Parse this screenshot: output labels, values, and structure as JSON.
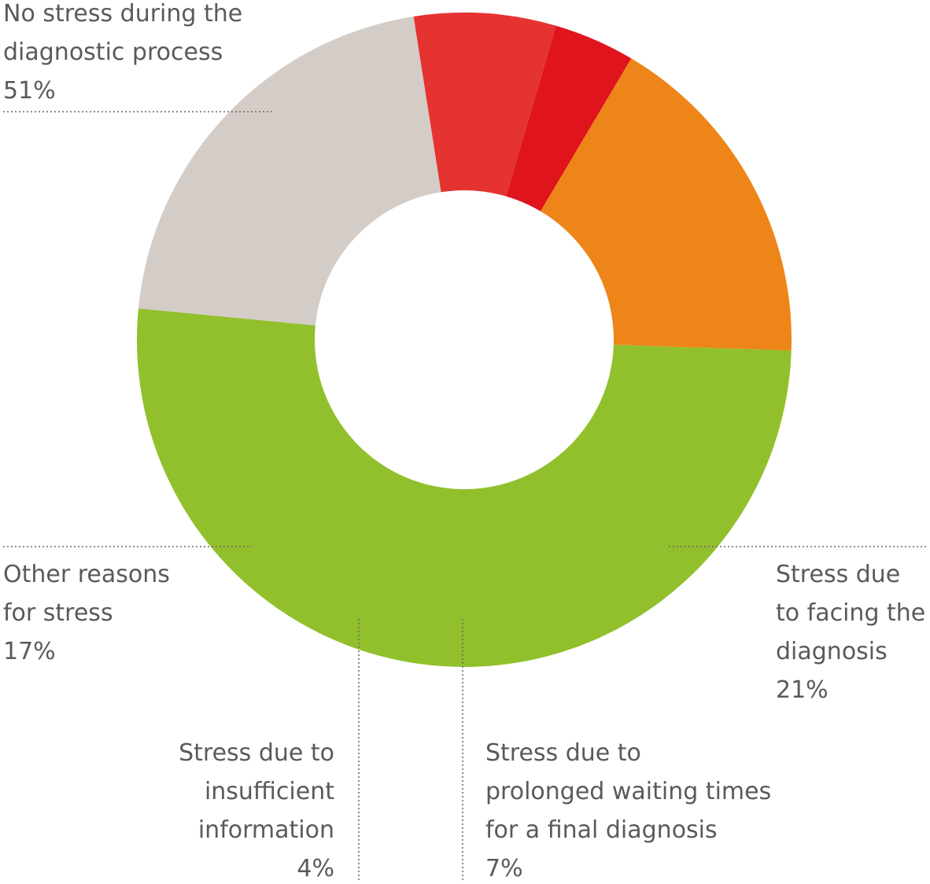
{
  "chart_data": {
    "type": "pie",
    "style": "donut",
    "title": "",
    "legend": "none",
    "slices": [
      {
        "lines": [
          "No stress during the",
          "diagnostic process"
        ],
        "value": 51,
        "value_label": "51%",
        "color": "#92c02c"
      },
      {
        "lines": [
          "Stress due",
          "to facing the",
          "diagnosis"
        ],
        "value": 21,
        "value_label": "21%",
        "color": "#d4ccc7"
      },
      {
        "lines": [
          "Stress due to",
          "prolonged waiting times",
          "for a final diagnosis"
        ],
        "value": 7,
        "value_label": "7%",
        "color": "#e53331"
      },
      {
        "lines": [
          "Stress due to",
          "insufficient",
          "information"
        ],
        "value": 4,
        "value_label": "4%",
        "color": "#e0141c"
      },
      {
        "lines": [
          "Other reasons",
          "for stress"
        ],
        "value": 17,
        "value_label": "17%",
        "color": "#ee8519"
      }
    ]
  }
}
